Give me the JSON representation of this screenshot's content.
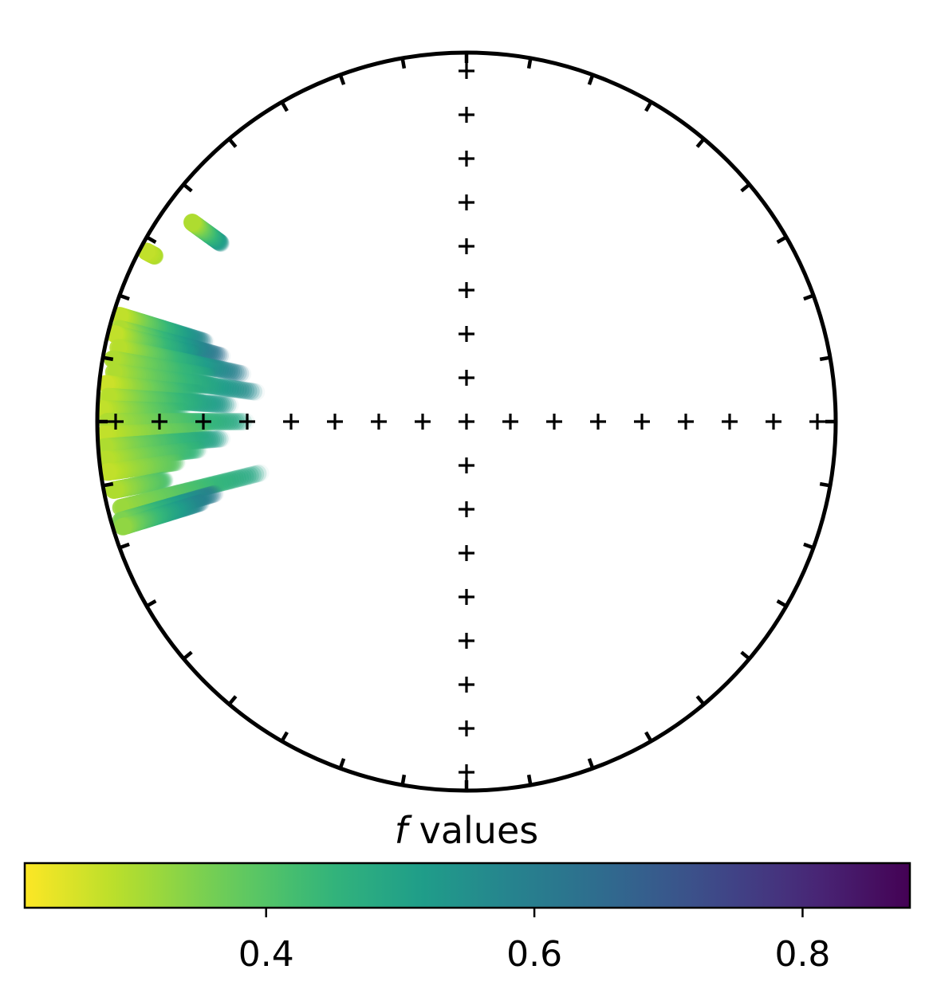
{
  "chart_data": {
    "type": "scatter",
    "projection": "equal-area stereonet",
    "title": "",
    "colormap": "viridis_r",
    "grid_markers": "plus",
    "colorbar": {
      "title_italic": "f",
      "title_rest": " values",
      "range": [
        0.22,
        0.88
      ],
      "ticks": [
        0.4,
        0.6,
        0.8
      ],
      "tick_labels": [
        "0.4",
        "0.6",
        "0.8"
      ],
      "orientation": "horizontal",
      "placement": "bottom"
    },
    "series": [
      {
        "dec": 306,
        "inc_start": 19,
        "inc_end": 9,
        "f_start": 0.55,
        "f_end": 0.3
      },
      {
        "dec": 298,
        "inc_start": 5,
        "inc_end": 2,
        "f_start": 0.3,
        "f_end": 0.28
      },
      {
        "dec": 287,
        "inc_start": 27,
        "inc_end": 2,
        "f_start": 0.6,
        "f_end": 0.28
      },
      {
        "dec": 285,
        "inc_start": 32,
        "inc_end": 3,
        "f_start": 0.65,
        "f_end": 0.3
      },
      {
        "dec": 284,
        "inc_start": 25,
        "inc_end": 2,
        "f_start": 0.55,
        "f_end": 0.28
      },
      {
        "dec": 282,
        "inc_start": 38,
        "inc_end": 4,
        "f_start": 0.62,
        "f_end": 0.29
      },
      {
        "dec": 280,
        "inc_start": 30,
        "inc_end": 3,
        "f_start": 0.5,
        "f_end": 0.3
      },
      {
        "dec": 278,
        "inc_start": 42,
        "inc_end": 4,
        "f_start": 0.58,
        "f_end": 0.3
      },
      {
        "dec": 276,
        "inc_start": 28,
        "inc_end": 2,
        "f_start": 0.48,
        "f_end": 0.27
      },
      {
        "dec": 274,
        "inc_start": 36,
        "inc_end": 3,
        "f_start": 0.55,
        "f_end": 0.29
      },
      {
        "dec": 272,
        "inc_start": 24,
        "inc_end": 1,
        "f_start": 0.45,
        "f_end": 0.28
      },
      {
        "dec": 270,
        "inc_start": 40,
        "inc_end": 3,
        "f_start": 0.5,
        "f_end": 0.3
      },
      {
        "dec": 268,
        "inc_start": 30,
        "inc_end": 2,
        "f_start": 0.42,
        "f_end": 0.28
      },
      {
        "dec": 266,
        "inc_start": 34,
        "inc_end": 2,
        "f_start": 0.52,
        "f_end": 0.3
      },
      {
        "dec": 264,
        "inc_start": 28,
        "inc_end": 2,
        "f_start": 0.46,
        "f_end": 0.29
      },
      {
        "dec": 262,
        "inc_start": 22,
        "inc_end": 2,
        "f_start": 0.4,
        "f_end": 0.28
      },
      {
        "dec": 259,
        "inc_start": 18,
        "inc_end": 3,
        "f_start": 0.42,
        "f_end": 0.3
      },
      {
        "dec": 256,
        "inc_start": 42,
        "inc_end": 4,
        "f_start": 0.5,
        "f_end": 0.32
      },
      {
        "dec": 254,
        "inc_start": 30,
        "inc_end": 3,
        "f_start": 0.62,
        "f_end": 0.35
      },
      {
        "dec": 253,
        "inc_start": 26,
        "inc_end": 3,
        "f_start": 0.6,
        "f_end": 0.33
      }
    ]
  }
}
